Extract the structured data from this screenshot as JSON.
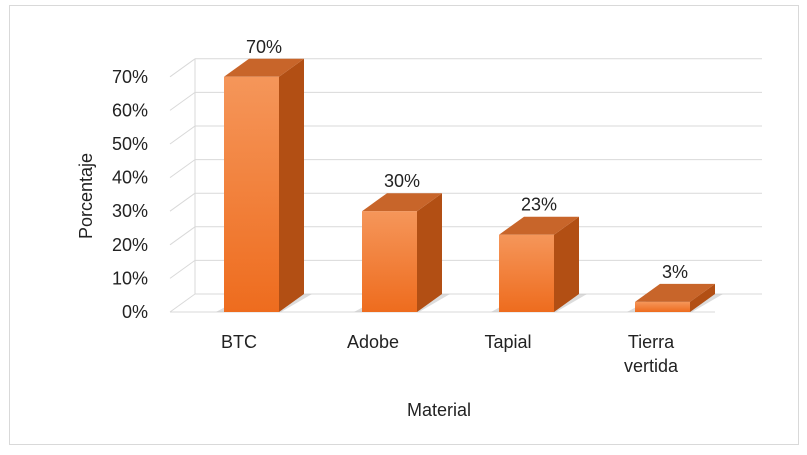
{
  "chart_data": {
    "type": "bar",
    "title": "",
    "xlabel": "Material",
    "ylabel": "Porcentaje",
    "categories": [
      [
        "BTC"
      ],
      [
        "Adobe"
      ],
      [
        "Tapial"
      ],
      [
        "Tierra",
        "vertida"
      ]
    ],
    "values": [
      70,
      30,
      23,
      3
    ],
    "data_labels": [
      "70%",
      "30%",
      "23%",
      "3%"
    ],
    "ylim": [
      0,
      70
    ],
    "yticks": [
      0,
      10,
      20,
      30,
      40,
      50,
      60,
      70
    ],
    "ytick_labels": [
      "0%",
      "10%",
      "20%",
      "30%",
      "40%",
      "50%",
      "60%",
      "70%"
    ],
    "grid": true,
    "style": "3d-column",
    "colors": {
      "bar_front_top": "#f5965a",
      "bar_front_bottom": "#ee6c1e",
      "bar_side": "#b24f14",
      "bar_top": "#c8652a",
      "grid": "#d9d9d9",
      "shadow": "#bfbfbf"
    }
  }
}
